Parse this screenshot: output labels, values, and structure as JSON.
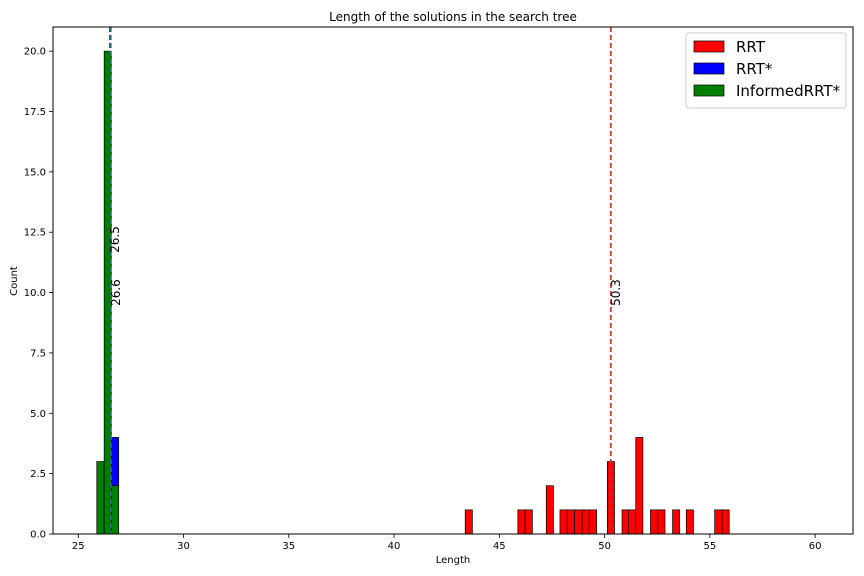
{
  "chart_data": {
    "type": "bar",
    "title": "Length of the solutions in the search tree",
    "xlabel": "Length",
    "ylabel": "Count",
    "xlim": [
      23.8,
      61.8
    ],
    "ylim": [
      0,
      21
    ],
    "xticks": [
      25,
      30,
      35,
      40,
      45,
      50,
      55,
      60
    ],
    "yticks": [
      0.0,
      2.5,
      5.0,
      7.5,
      10.0,
      12.5,
      15.0,
      17.5,
      20.0
    ],
    "bin_width": 0.34,
    "legend_position": "top-right",
    "series": [
      {
        "name": "RRT",
        "color": "#ff0000",
        "bars": [
          {
            "x": 43.55,
            "value": 1
          },
          {
            "x": 46.05,
            "value": 1
          },
          {
            "x": 46.4,
            "value": 1
          },
          {
            "x": 47.4,
            "value": 2
          },
          {
            "x": 48.05,
            "value": 1
          },
          {
            "x": 48.4,
            "value": 1
          },
          {
            "x": 48.75,
            "value": 1
          },
          {
            "x": 49.1,
            "value": 1
          },
          {
            "x": 49.45,
            "value": 1
          },
          {
            "x": 50.3,
            "value": 3
          },
          {
            "x": 51.0,
            "value": 1
          },
          {
            "x": 51.3,
            "value": 1
          },
          {
            "x": 51.65,
            "value": 4
          },
          {
            "x": 52.35,
            "value": 1
          },
          {
            "x": 52.7,
            "value": 1
          },
          {
            "x": 53.4,
            "value": 1
          },
          {
            "x": 54.05,
            "value": 1
          },
          {
            "x": 55.4,
            "value": 1
          },
          {
            "x": 55.75,
            "value": 1
          }
        ]
      },
      {
        "name": "RRT*",
        "color": "#0000ff",
        "bars": [
          {
            "x": 26.75,
            "value": 4
          }
        ]
      },
      {
        "name": "InformedRRT*",
        "color": "#008000",
        "bars": [
          {
            "x": 26.05,
            "value": 3
          },
          {
            "x": 26.4,
            "value": 20
          },
          {
            "x": 26.75,
            "value": 2
          }
        ]
      }
    ],
    "reference_lines": [
      {
        "x": 50.3,
        "label": "50.3",
        "color": "#d62728",
        "label_y": 10
      },
      {
        "x": 26.55,
        "label": "26.6",
        "color": "#2ca02c",
        "label_y": 10
      },
      {
        "x": 26.5,
        "label": "26.5",
        "color": "#1f4e9e",
        "label_y": 12.2
      }
    ]
  }
}
